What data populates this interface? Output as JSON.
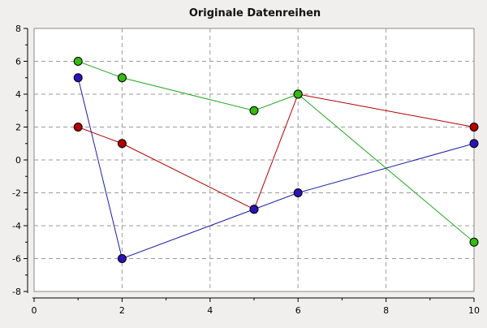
{
  "chart_data": {
    "type": "line",
    "title": "Originale Datenreihen",
    "xlabel": "",
    "ylabel": "",
    "xlim": [
      0,
      10
    ],
    "ylim": [
      -8,
      8
    ],
    "x_ticks": [
      0,
      2,
      4,
      6,
      8,
      10
    ],
    "y_ticks": [
      -8,
      -6,
      -4,
      -2,
      0,
      2,
      4,
      6,
      8
    ],
    "grid": true,
    "series": [
      {
        "color": "#b30000",
        "marker_color": "#b30000",
        "x": [
          1,
          2,
          5,
          6,
          10
        ],
        "y": [
          2,
          1,
          -3,
          4,
          2
        ]
      },
      {
        "color": "#1a1aa6",
        "marker_color": "#2a13b8",
        "x": [
          1,
          2,
          5,
          6,
          10
        ],
        "y": [
          5,
          -6,
          -3,
          -2,
          1
        ]
      },
      {
        "color": "#22a822",
        "marker_color": "#33bb11",
        "x": [
          1,
          2,
          5,
          6,
          10
        ],
        "y": [
          6,
          5,
          3,
          4,
          -5
        ]
      }
    ]
  }
}
